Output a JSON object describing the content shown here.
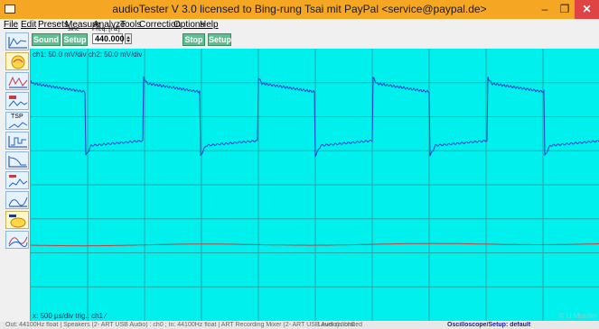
{
  "window": {
    "title": "audioTester  V 3.0   licensed to Bing-rung Tsai mit PayPal <service@paypal.de>",
    "minimize": "–",
    "maximize": "❐",
    "close": "✕"
  },
  "menu": [
    "File",
    "Edit",
    "Presets",
    "Measure",
    "Analyze",
    "Tools",
    "Correction",
    "Options",
    "Help"
  ],
  "toolbar": {
    "sound_on": "Sound on",
    "setup": "Setup",
    "waveform_label": "sine",
    "freq_label": "Freq. [Hz]",
    "freq_value": "440.0000",
    "stop": "Stop",
    "setup2": "Setup"
  },
  "sidebar": {
    "tsp_label": "TSP",
    "icons": [
      "scope-icon",
      "spectrum-icon",
      "waveform-icon",
      "distortion-icon",
      "tsp-icon",
      "step-response-icon",
      "filter-icon",
      "sweep-icon",
      "level-icon",
      "frequency-response-icon",
      "impulse-icon"
    ]
  },
  "scope": {
    "channel_info": "ch1: 50.0 mV/div  ch2: 50.0 mV/div",
    "axis_info": "x: 500 µs/div  trig.: ch1 ⁄",
    "watermark": "© U.Mueller",
    "background": "#00f0ee",
    "grid_color": "#2aa7a7",
    "ch1_color": "#2244cc",
    "ch2_color": "#c04040"
  },
  "status": {
    "io": "Out: 44100Hz float  |  Speakers (2- ART USB Audio) : ch0 ; In: 44100Hz float  |  ART Recording Mixer (2- ART USB Audio) : ch0",
    "level": "Level calibrated",
    "mode": "Oscilloscope/Setup: default"
  }
}
